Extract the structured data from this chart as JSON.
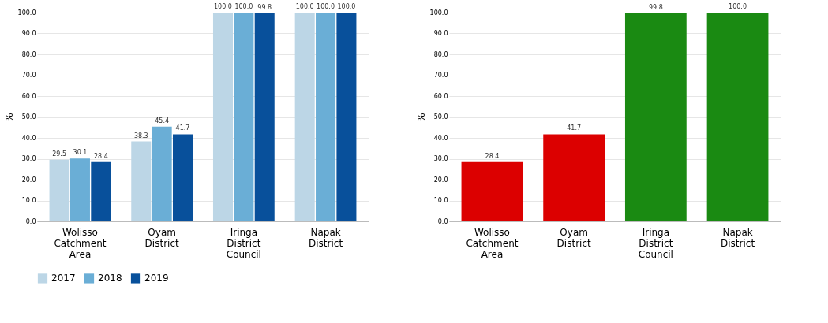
{
  "chart_data": [
    {
      "type": "bar",
      "ylabel": "%",
      "categories": [
        "Wolisso Catchment Area",
        "Oyam District",
        "Iringa District Council",
        "Napak District"
      ],
      "series": [
        {
          "name": "2017",
          "color": "#bcd6e6",
          "values": [
            29.5,
            38.3,
            100.0,
            100.0
          ],
          "value_labels": [
            "29.5",
            "38.3",
            "100.0",
            "100.0"
          ]
        },
        {
          "name": "2018",
          "color": "#6aaed6",
          "values": [
            30.1,
            45.4,
            100.0,
            100.0
          ],
          "value_labels": [
            "30.1",
            "45.4",
            "100.0",
            "100.0"
          ]
        },
        {
          "name": "2019",
          "color": "#08509b",
          "values": [
            28.4,
            41.7,
            99.8,
            100.0
          ],
          "value_labels": [
            "28.4",
            "41.7",
            "99.8",
            "100.0"
          ]
        }
      ],
      "ylim": [
        0,
        100
      ],
      "yticks": [
        {
          "value": 0,
          "label": "0.0"
        },
        {
          "value": 10,
          "label": "10.0"
        },
        {
          "value": 20,
          "label": "20.0"
        },
        {
          "value": 30,
          "label": "30.0"
        },
        {
          "value": 40,
          "label": "40.0"
        },
        {
          "value": 50,
          "label": "50.0"
        },
        {
          "value": 60,
          "label": "60.0"
        },
        {
          "value": 70,
          "label": "70.0"
        },
        {
          "value": 80,
          "label": "80.0"
        },
        {
          "value": 90,
          "label": "90.0"
        },
        {
          "value": 100,
          "label": "100.0"
        }
      ],
      "grid": "y",
      "legend": "bottom"
    },
    {
      "type": "bar",
      "ylabel": "%",
      "categories": [
        "Wolisso Catchment Area",
        "Oyam District",
        "Iringa District Council",
        "Napak District"
      ],
      "values": [
        28.4,
        41.7,
        99.8,
        100.0
      ],
      "value_labels": [
        "28.4",
        "41.7",
        "99.8",
        "100.0"
      ],
      "colors": [
        "#dc0000",
        "#dc0000",
        "#1a8a12",
        "#1a8a12"
      ],
      "ylim": [
        0,
        100
      ],
      "yticks": [
        {
          "value": 0,
          "label": "0.0"
        },
        {
          "value": 10,
          "label": "10.0"
        },
        {
          "value": 20,
          "label": "20.0"
        },
        {
          "value": 30,
          "label": "30.0"
        },
        {
          "value": 40,
          "label": "40.0"
        },
        {
          "value": 50,
          "label": "50.0"
        },
        {
          "value": 60,
          "label": "60.0"
        },
        {
          "value": 70,
          "label": "70.0"
        },
        {
          "value": 80,
          "label": "80.0"
        },
        {
          "value": 90,
          "label": "90.0"
        },
        {
          "value": 100,
          "label": "100.0"
        }
      ],
      "grid": "y"
    }
  ]
}
